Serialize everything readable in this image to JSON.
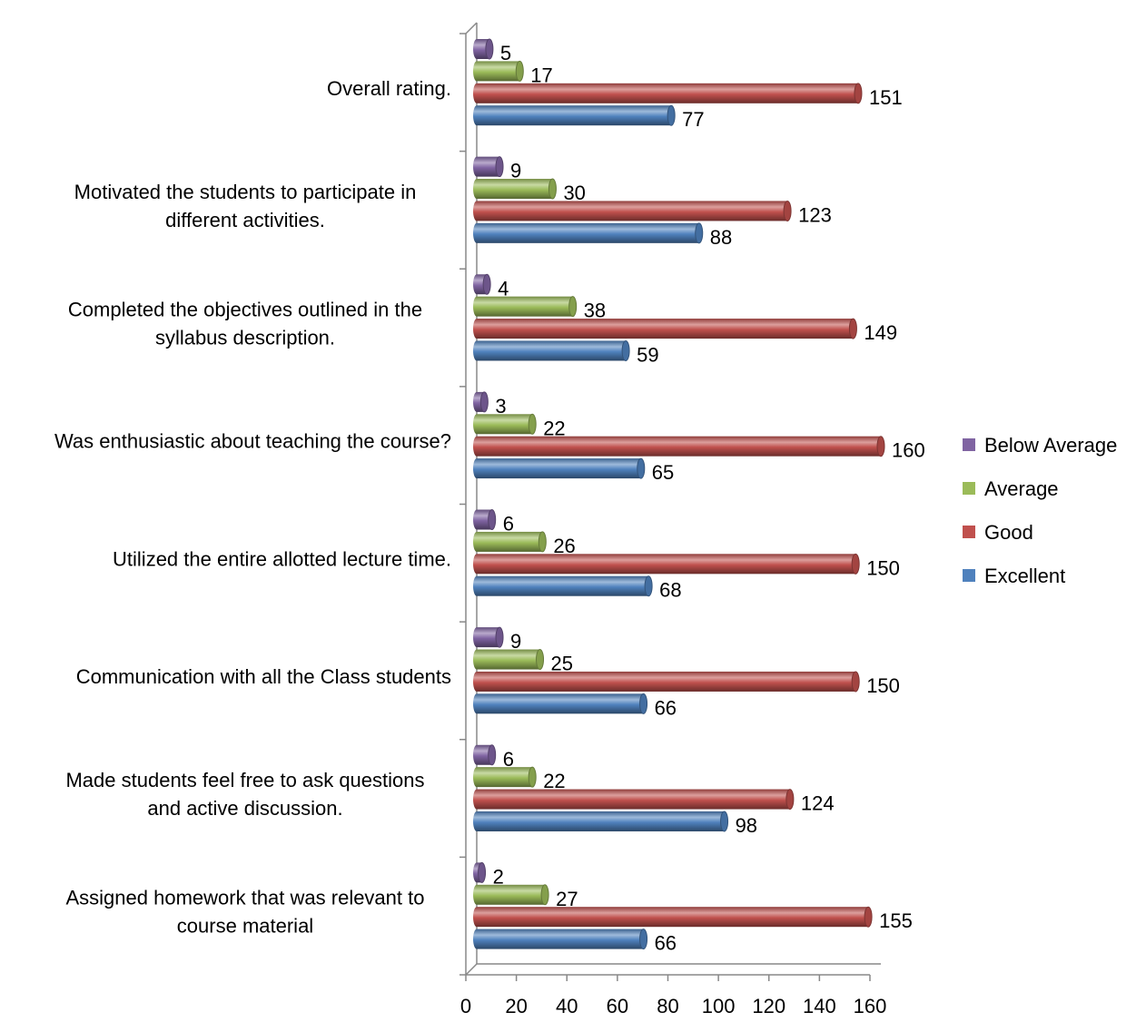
{
  "chart_data": {
    "type": "bar",
    "orientation": "horizontal",
    "style": "3d-cylinder",
    "categories": [
      "Overall rating.",
      "Motivated the students to participate in different activities.",
      "Completed the objectives outlined in the syllabus description.",
      "Was enthusiastic about teaching the course?",
      "Utilized the entire allotted lecture time.",
      "Communication with all the Class students",
      "Made students feel free to ask questions and active discussion.",
      "Assigned homework that was relevant to course material"
    ],
    "category_lines": [
      [
        "Overall rating."
      ],
      [
        "Motivated the students to participate in",
        "different activities."
      ],
      [
        "Completed the objectives outlined in the",
        "syllabus description."
      ],
      [
        "Was enthusiastic about teaching the course?"
      ],
      [
        "Utilized the entire allotted lecture time."
      ],
      [
        "Communication with all the Class students"
      ],
      [
        "Made students feel free to ask questions",
        "and active discussion."
      ],
      [
        "Assigned homework that was relevant to",
        "course material"
      ]
    ],
    "series": [
      {
        "name": "Below Average",
        "color": "#8064A2",
        "values": [
          5,
          9,
          4,
          3,
          6,
          9,
          6,
          2
        ]
      },
      {
        "name": "Average",
        "color": "#9BBB59",
        "values": [
          17,
          30,
          38,
          22,
          26,
          25,
          22,
          27
        ]
      },
      {
        "name": "Good",
        "color": "#C0504D",
        "values": [
          151,
          123,
          149,
          160,
          150,
          150,
          124,
          155
        ]
      },
      {
        "name": "Excellent",
        "color": "#4F81BD",
        "values": [
          77,
          88,
          59,
          65,
          68,
          66,
          98,
          66
        ]
      }
    ],
    "xlim": [
      0,
      160
    ],
    "xticks": [
      0,
      20,
      40,
      60,
      80,
      100,
      120,
      140,
      160
    ],
    "title": "",
    "xlabel": "",
    "ylabel": "",
    "grid": false,
    "legend": "right"
  }
}
